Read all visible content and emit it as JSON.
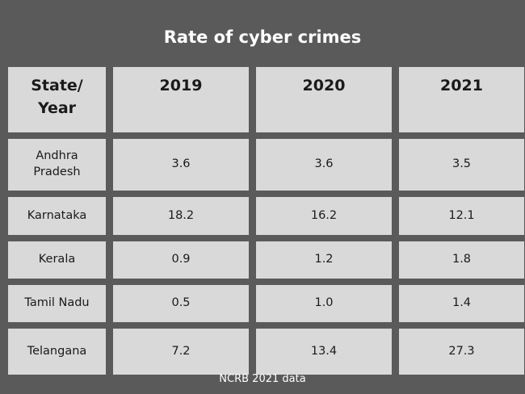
{
  "title": "Rate of cyber crimes",
  "source": "NCRB 2021 data",
  "chart_data": {
    "type": "table",
    "title": "Rate of cyber crimes",
    "columns": [
      "State/\nYear",
      "2019",
      "2020",
      "2021"
    ],
    "rows": [
      {
        "state": "Andhra\nPradesh",
        "values": [
          "3.6",
          "3.6",
          "3.5"
        ]
      },
      {
        "state": "Karnataka",
        "values": [
          "18.2",
          "16.2",
          "12.1"
        ]
      },
      {
        "state": "Kerala",
        "values": [
          "0.9",
          "1.2",
          "1.8"
        ]
      },
      {
        "state": "Tamil Nadu",
        "values": [
          "0.5",
          "1.0",
          "1.4"
        ]
      },
      {
        "state": "Telangana",
        "values": [
          "7.2",
          "13.4",
          "27.3"
        ]
      }
    ]
  }
}
